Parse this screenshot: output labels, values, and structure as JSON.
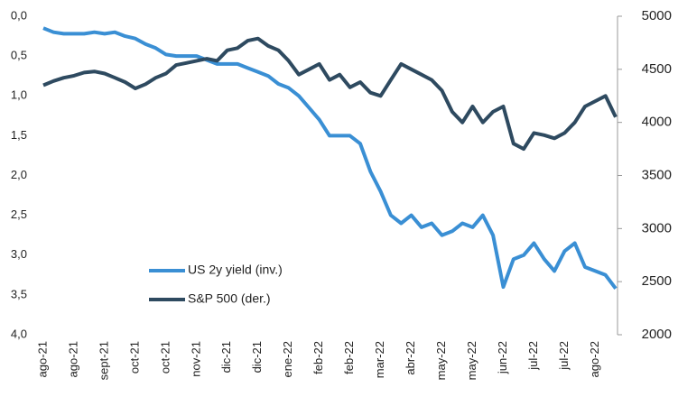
{
  "chart_data": {
    "type": "line",
    "categories": [
      "ago-21",
      null,
      null,
      "ago-21",
      null,
      null,
      "sept-21",
      null,
      null,
      "oct-21",
      null,
      null,
      "oct-21",
      null,
      null,
      "nov-21",
      null,
      null,
      "dic-21",
      null,
      null,
      "dic-21",
      null,
      null,
      "ene-22",
      null,
      null,
      "feb-22",
      null,
      null,
      "feb-22",
      null,
      null,
      "mar-22",
      null,
      null,
      "abr-22",
      null,
      null,
      "may-22",
      null,
      null,
      "may-22",
      null,
      null,
      "jun-22",
      null,
      null,
      "jul-22",
      null,
      null,
      "jul-22",
      null,
      null,
      "ago-22",
      null,
      null
    ],
    "series": [
      {
        "name": "US 2y yield (inv.)",
        "color": "#3a8fd4",
        "axis": "y",
        "values": [
          0.15,
          0.2,
          0.22,
          0.22,
          0.22,
          0.2,
          0.22,
          0.2,
          0.25,
          0.28,
          0.35,
          0.4,
          0.48,
          0.5,
          0.5,
          0.5,
          0.55,
          0.6,
          0.6,
          0.6,
          0.65,
          0.7,
          0.75,
          0.85,
          0.9,
          1.0,
          1.15,
          1.3,
          1.5,
          1.5,
          1.5,
          1.6,
          1.95,
          2.2,
          2.5,
          2.6,
          2.5,
          2.65,
          2.6,
          2.75,
          2.7,
          2.6,
          2.65,
          2.5,
          2.75,
          3.4,
          3.05,
          3.0,
          2.85,
          3.05,
          3.2,
          2.95,
          2.85,
          3.15,
          3.2,
          3.25,
          3.42
        ]
      },
      {
        "name": "S&P 500 (der.)",
        "color": "#2e4a60",
        "axis": "y2",
        "values": [
          4350,
          4390,
          4420,
          4440,
          4470,
          4480,
          4460,
          4420,
          4380,
          4320,
          4360,
          4420,
          4460,
          4540,
          4560,
          4580,
          4600,
          4580,
          4680,
          4700,
          4770,
          4790,
          4720,
          4680,
          4580,
          4450,
          4500,
          4550,
          4400,
          4450,
          4330,
          4380,
          4280,
          4250,
          4400,
          4550,
          4500,
          4450,
          4400,
          4300,
          4100,
          4000,
          4150,
          4000,
          4100,
          4150,
          3800,
          3750,
          3900,
          3880,
          3850,
          3900,
          4000,
          4150,
          4200,
          4250,
          4050
        ]
      }
    ],
    "ylim": [
      0,
      4
    ],
    "y_inverted": true,
    "yticks": [
      {
        "value": 0,
        "label": "0,0"
      },
      {
        "value": 0.5,
        "label": "0,5"
      },
      {
        "value": 1,
        "label": "1,0"
      },
      {
        "value": 1.5,
        "label": "1,5"
      },
      {
        "value": 2,
        "label": "2,0"
      },
      {
        "value": 2.5,
        "label": "2,5"
      },
      {
        "value": 3,
        "label": "3,0"
      },
      {
        "value": 3.5,
        "label": "3,5"
      },
      {
        "value": 4,
        "label": "4,0"
      }
    ],
    "y2lim": [
      2000,
      5000
    ],
    "y2ticks": [
      2000,
      2500,
      3000,
      3500,
      4000,
      4500,
      5000
    ],
    "grid": false
  }
}
